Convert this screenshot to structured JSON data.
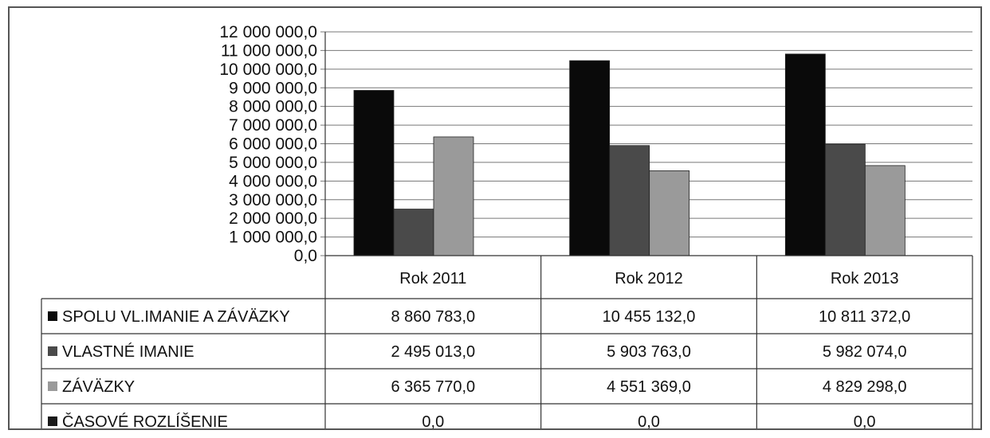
{
  "chart_data": {
    "type": "bar",
    "categories": [
      "Rok 2011",
      "Rok 2012",
      "Rok 2013"
    ],
    "series": [
      {
        "name": "SPOLU VL.IMANIE A ZÁVÄZKY",
        "values": [
          8860783.0,
          10455132.0,
          10811372.0
        ],
        "color": "#0a0a0a",
        "labels": [
          "8 860 783,0",
          "10 455 132,0",
          "10 811 372,0"
        ]
      },
      {
        "name": "VLASTNÉ IMANIE",
        "values": [
          2495013.0,
          5903763.0,
          5982074.0
        ],
        "color": "#4a4a4a",
        "labels": [
          "2 495 013,0",
          "5 903 763,0",
          "5 982 074,0"
        ]
      },
      {
        "name": "ZÁVÄZKY",
        "values": [
          6365770.0,
          4551369.0,
          4829298.0
        ],
        "color": "#9a9a9a",
        "labels": [
          "6 365 770,0",
          "4 551 369,0",
          "4 829 298,0"
        ]
      },
      {
        "name": "ČASOVÉ ROZLÍŠENIE",
        "values": [
          0.0,
          0.0,
          0.0
        ],
        "color": "#1a1a1a",
        "labels": [
          "0,0",
          "0,0",
          "0,0"
        ]
      }
    ],
    "ylim": [
      0,
      12000000
    ],
    "yticks": [
      "0,0",
      "1 000 000,0",
      "2 000 000,0",
      "3 000 000,0",
      "4 000 000,0",
      "5 000 000,0",
      "6 000 000,0",
      "7 000 000,0",
      "8 000 000,0",
      "9 000 000,0",
      "10 000 000,0",
      "11 000 000,0",
      "12 000 000,0"
    ],
    "grid": true,
    "legend": "data table below chart"
  }
}
